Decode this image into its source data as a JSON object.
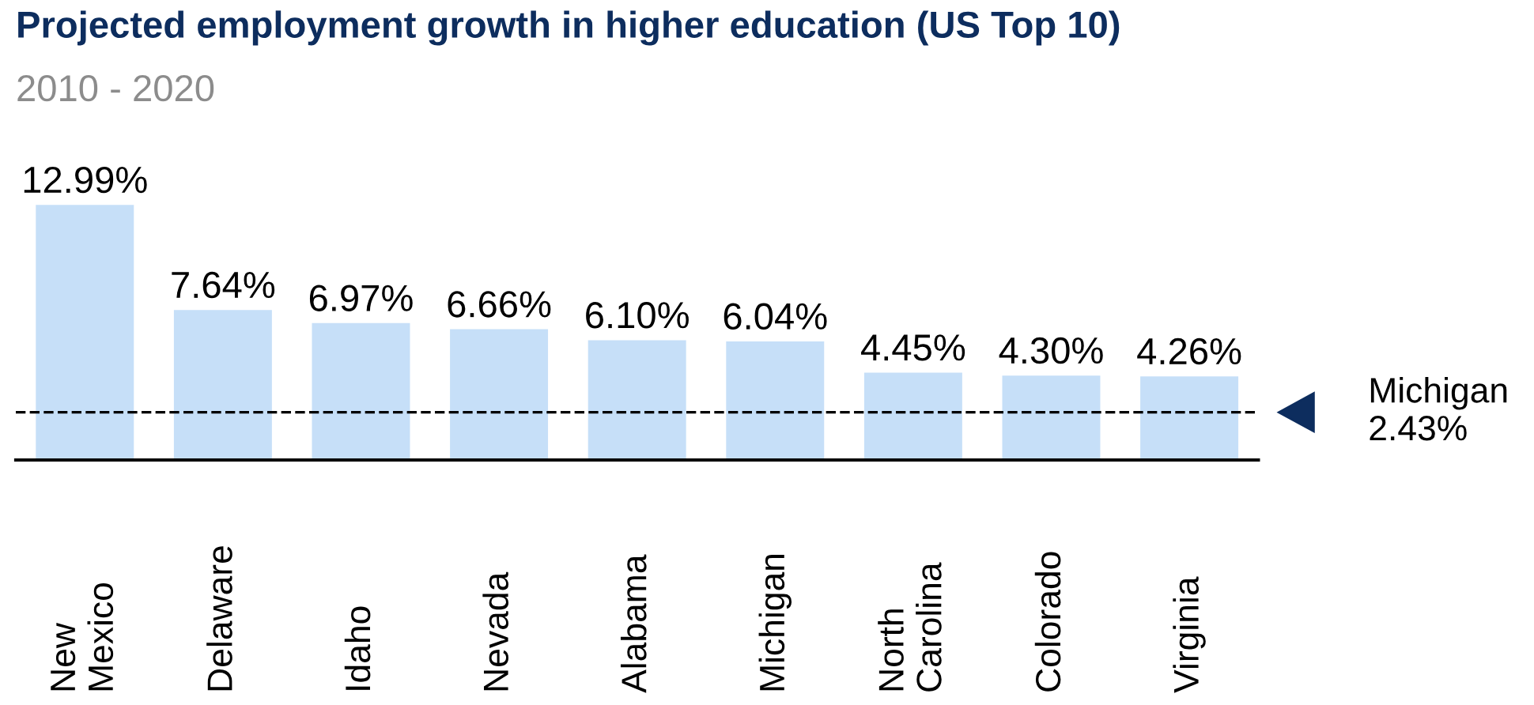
{
  "chart_data": {
    "type": "bar",
    "title": "Projected employment growth in higher education (US Top 10)",
    "subtitle": "2010 - 2020",
    "categories": [
      "New\nMexico",
      "Delaware",
      "Idaho",
      "Nevada",
      "Alabama",
      "Michigan",
      "North\nCarolina",
      "Colorado",
      "Virginia"
    ],
    "values": [
      12.99,
      7.64,
      6.97,
      6.66,
      6.1,
      6.04,
      4.45,
      4.3,
      4.26
    ],
    "value_labels": [
      "12.99%",
      "7.64%",
      "6.97%",
      "6.66%",
      "6.10%",
      "6.04%",
      "4.45%",
      "4.30%",
      "4.26%"
    ],
    "color": "#c6dff8",
    "ref_lines": [
      {
        "axis": "y",
        "value": 2.43,
        "label": "Michigan\n2.43%",
        "color": "#000000",
        "line_style": "dashed"
      }
    ]
  }
}
